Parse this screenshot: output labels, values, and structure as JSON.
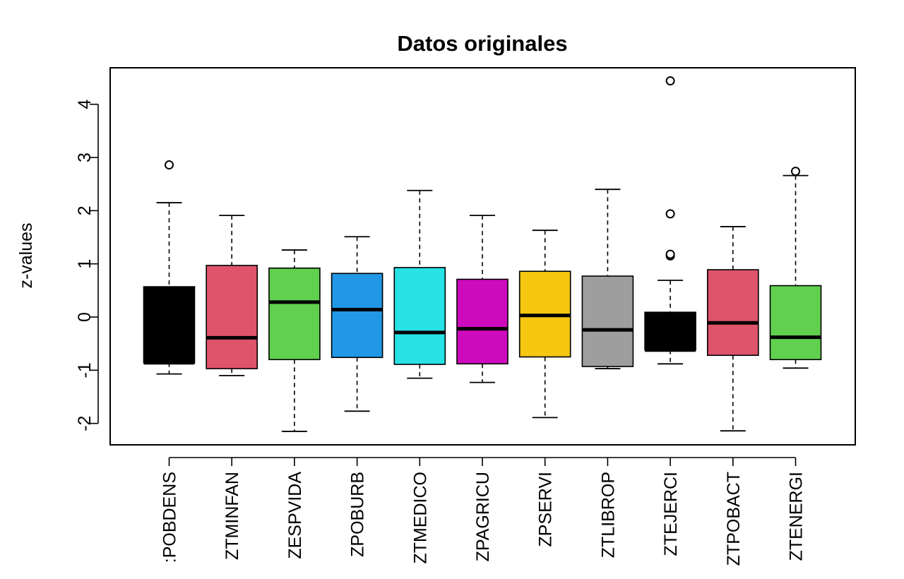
{
  "chart_data": {
    "type": "boxplot",
    "title": "Datos originales",
    "xlabel": "",
    "ylabel": "z-values",
    "ylim": [
      -2.4,
      4.7
    ],
    "yticks": [
      -2,
      -1,
      0,
      1,
      2,
      3,
      4
    ],
    "ytick_labels": [
      "-2",
      "-1",
      "0",
      "1",
      "2",
      "3",
      "4"
    ],
    "grid": false,
    "legend": "none",
    "categories": [
      "ZPOBDENS",
      "ZTMINFAN",
      "ZESPVIDA",
      "ZPOBURB",
      "ZTMEDICO",
      "ZPAGRICU",
      "ZPSERVI",
      "ZTLIBROP",
      "ZTEJERCI",
      "ZTPOBACT",
      "ZTENERGI"
    ],
    "category_labels_visible": [
      ":POBDENS",
      "ZTMINFAN",
      "ZESPVIDA",
      "ZPOBURB",
      "ZTMEDICO",
      "ZPAGRICU",
      "ZPSERVI",
      "ZTLIBROP",
      "ZTEJERCI",
      "ZTPOBACT",
      "ZTENERGI"
    ],
    "boxes": [
      {
        "name": "ZPOBDENS",
        "color": "#000000",
        "whisker_low": -1.07,
        "q1": -0.86,
        "median": -0.86,
        "q3": 0.57,
        "whisker_high": 2.15,
        "outliers": [
          2.86
        ]
      },
      {
        "name": "ZTMINFAN",
        "color": "#DF536B",
        "whisker_low": -1.1,
        "q1": -0.97,
        "median": -0.39,
        "q3": 0.97,
        "whisker_high": 1.91,
        "outliers": []
      },
      {
        "name": "ZESPVIDA",
        "color": "#61D04F",
        "whisker_low": -2.15,
        "q1": -0.8,
        "median": 0.28,
        "q3": 0.92,
        "whisker_high": 1.26,
        "outliers": []
      },
      {
        "name": "ZPOBURB",
        "color": "#2297E6",
        "whisker_low": -1.77,
        "q1": -0.76,
        "median": 0.14,
        "q3": 0.82,
        "whisker_high": 1.51,
        "outliers": []
      },
      {
        "name": "ZTMEDICO",
        "color": "#28E2E5",
        "whisker_low": -1.15,
        "q1": -0.89,
        "median": -0.29,
        "q3": 0.93,
        "whisker_high": 2.38,
        "outliers": []
      },
      {
        "name": "ZPAGRICU",
        "color": "#CD0BBC",
        "whisker_low": -1.23,
        "q1": -0.88,
        "median": -0.22,
        "q3": 0.71,
        "whisker_high": 1.91,
        "outliers": []
      },
      {
        "name": "ZPSERVI",
        "color": "#F5C710",
        "whisker_low": -1.89,
        "q1": -0.75,
        "median": 0.03,
        "q3": 0.86,
        "whisker_high": 1.63,
        "outliers": []
      },
      {
        "name": "ZTLIBROP",
        "color": "#9E9E9E",
        "whisker_low": -0.97,
        "q1": -0.93,
        "median": -0.24,
        "q3": 0.77,
        "whisker_high": 2.4,
        "outliers": []
      },
      {
        "name": "ZTEJERCI",
        "color": "#000000",
        "whisker_low": -0.88,
        "q1": -0.62,
        "median": -0.62,
        "q3": 0.09,
        "whisker_high": 0.69,
        "outliers": [
          1.15,
          1.18,
          1.94,
          4.44
        ]
      },
      {
        "name": "ZTPOBACT",
        "color": "#DF536B",
        "whisker_low": -2.14,
        "q1": -0.72,
        "median": -0.11,
        "q3": 0.89,
        "whisker_high": 1.7,
        "outliers": []
      },
      {
        "name": "ZTENERGI",
        "color": "#61D04F",
        "whisker_low": -0.96,
        "q1": -0.8,
        "median": -0.38,
        "q3": 0.59,
        "whisker_high": 2.66,
        "outliers": [
          2.74
        ]
      }
    ]
  }
}
